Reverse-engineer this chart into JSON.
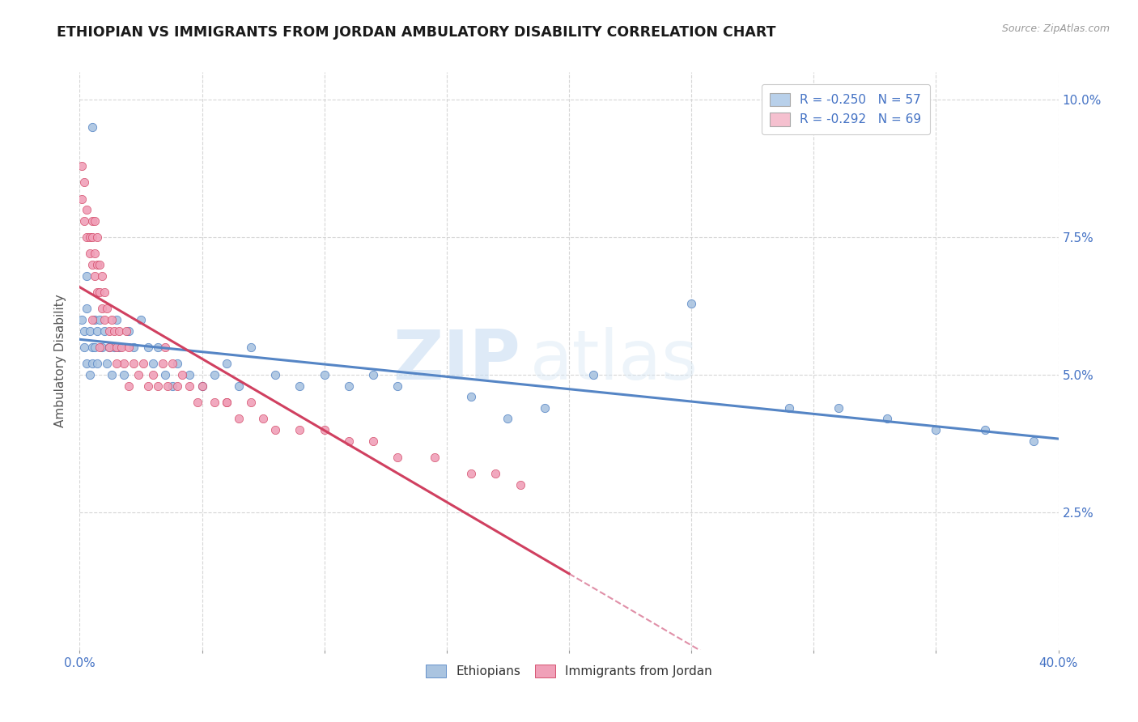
{
  "title": "ETHIOPIAN VS IMMIGRANTS FROM JORDAN AMBULATORY DISABILITY CORRELATION CHART",
  "source": "Source: ZipAtlas.com",
  "ylabel": "Ambulatory Disability",
  "yticks": [
    0.025,
    0.05,
    0.075,
    0.1
  ],
  "ytick_labels": [
    "2.5%",
    "5.0%",
    "7.5%",
    "10.0%"
  ],
  "xlim": [
    0.0,
    0.4
  ],
  "ylim": [
    0.0,
    0.105
  ],
  "watermark_zip": "ZIP",
  "watermark_atlas": "atlas",
  "legend_entries": [
    {
      "label": "R = -0.250   N = 57",
      "facecolor": "#b8d0ea"
    },
    {
      "label": "R = -0.292   N = 69",
      "facecolor": "#f5c0cf"
    }
  ],
  "legend_bottom": [
    "Ethiopians",
    "Immigrants from Jordan"
  ],
  "ethiopians_color": "#aac4e0",
  "jordan_color": "#f0a0b8",
  "trend_ethiopians_color": "#5585c5",
  "trend_jordan_color": "#d04060",
  "trend_dashed_color": "#e090a8",
  "ethiopians_x": [
    0.001,
    0.002,
    0.002,
    0.003,
    0.003,
    0.004,
    0.004,
    0.005,
    0.005,
    0.006,
    0.006,
    0.007,
    0.007,
    0.008,
    0.009,
    0.01,
    0.011,
    0.012,
    0.013,
    0.014,
    0.015,
    0.016,
    0.018,
    0.02,
    0.022,
    0.025,
    0.028,
    0.03,
    0.032,
    0.035,
    0.038,
    0.04,
    0.045,
    0.05,
    0.055,
    0.06,
    0.065,
    0.07,
    0.08,
    0.09,
    0.1,
    0.11,
    0.12,
    0.13,
    0.16,
    0.19,
    0.21,
    0.25,
    0.29,
    0.31,
    0.33,
    0.35,
    0.37,
    0.39,
    0.175,
    0.005,
    0.003
  ],
  "ethiopians_y": [
    0.06,
    0.058,
    0.055,
    0.062,
    0.052,
    0.058,
    0.05,
    0.055,
    0.052,
    0.06,
    0.055,
    0.058,
    0.052,
    0.06,
    0.055,
    0.058,
    0.052,
    0.055,
    0.05,
    0.055,
    0.06,
    0.055,
    0.05,
    0.058,
    0.055,
    0.06,
    0.055,
    0.052,
    0.055,
    0.05,
    0.048,
    0.052,
    0.05,
    0.048,
    0.05,
    0.052,
    0.048,
    0.055,
    0.05,
    0.048,
    0.05,
    0.048,
    0.05,
    0.048,
    0.046,
    0.044,
    0.05,
    0.063,
    0.044,
    0.044,
    0.042,
    0.04,
    0.04,
    0.038,
    0.042,
    0.095,
    0.068
  ],
  "jordan_x": [
    0.001,
    0.001,
    0.002,
    0.002,
    0.003,
    0.003,
    0.004,
    0.004,
    0.005,
    0.005,
    0.005,
    0.006,
    0.006,
    0.006,
    0.007,
    0.007,
    0.007,
    0.008,
    0.008,
    0.009,
    0.009,
    0.01,
    0.01,
    0.011,
    0.012,
    0.012,
    0.013,
    0.014,
    0.015,
    0.016,
    0.017,
    0.018,
    0.019,
    0.02,
    0.022,
    0.024,
    0.026,
    0.028,
    0.03,
    0.032,
    0.034,
    0.036,
    0.038,
    0.04,
    0.042,
    0.045,
    0.048,
    0.05,
    0.055,
    0.06,
    0.065,
    0.07,
    0.075,
    0.08,
    0.09,
    0.1,
    0.11,
    0.12,
    0.13,
    0.145,
    0.16,
    0.17,
    0.18,
    0.005,
    0.008,
    0.015,
    0.02,
    0.035,
    0.06
  ],
  "jordan_y": [
    0.088,
    0.082,
    0.085,
    0.078,
    0.08,
    0.075,
    0.075,
    0.072,
    0.078,
    0.075,
    0.07,
    0.078,
    0.072,
    0.068,
    0.075,
    0.07,
    0.065,
    0.07,
    0.065,
    0.068,
    0.062,
    0.065,
    0.06,
    0.062,
    0.058,
    0.055,
    0.06,
    0.058,
    0.055,
    0.058,
    0.055,
    0.052,
    0.058,
    0.055,
    0.052,
    0.05,
    0.052,
    0.048,
    0.05,
    0.048,
    0.052,
    0.048,
    0.052,
    0.048,
    0.05,
    0.048,
    0.045,
    0.048,
    0.045,
    0.045,
    0.042,
    0.045,
    0.042,
    0.04,
    0.04,
    0.04,
    0.038,
    0.038,
    0.035,
    0.035,
    0.032,
    0.032,
    0.03,
    0.06,
    0.055,
    0.052,
    0.048,
    0.055,
    0.045
  ],
  "jordan_trend_xend": 0.2,
  "eth_trend_xstart": 0.0,
  "eth_trend_xend": 0.4
}
